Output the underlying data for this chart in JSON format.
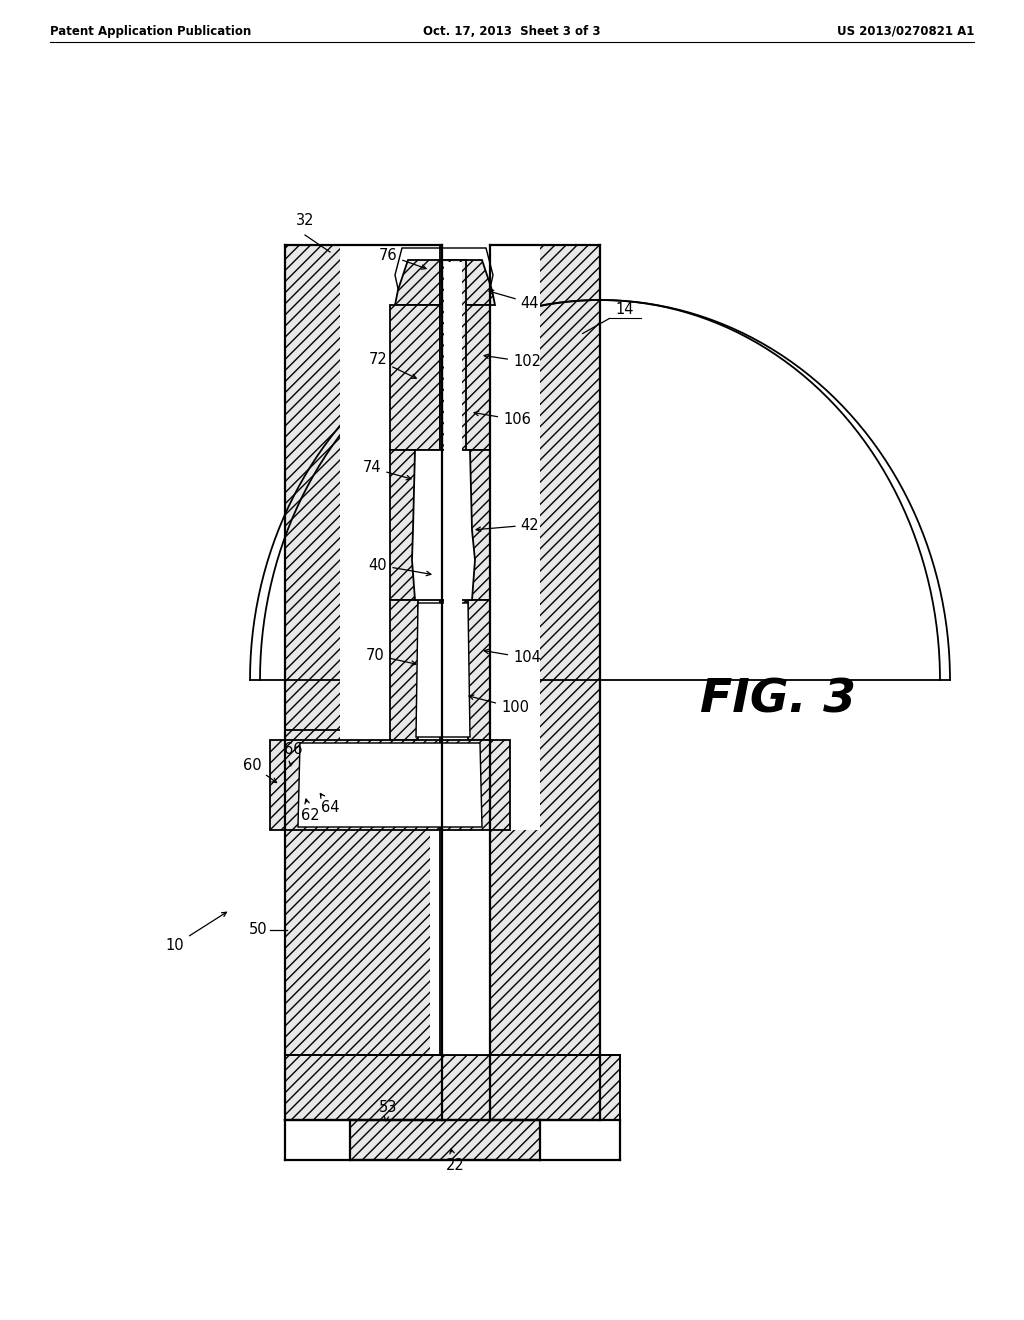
{
  "header_left": "Patent Application Publication",
  "header_center": "Oct. 17, 2013  Sheet 3 of 3",
  "header_right": "US 2013/0270821 A1",
  "fig_label": "FIG. 3",
  "background_color": "#ffffff",
  "line_color": "#000000"
}
